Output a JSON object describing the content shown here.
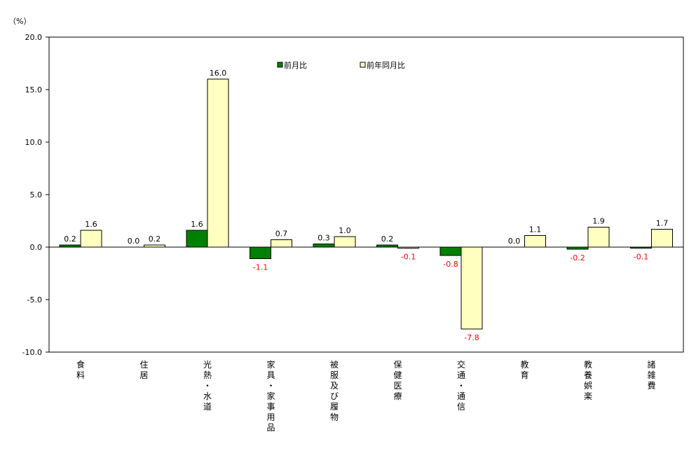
{
  "chart_data": {
    "type": "bar",
    "title": "",
    "ylabel": "（%）",
    "xlabel": "",
    "ylim": [
      -10,
      20
    ],
    "yticks": [
      "20.0",
      "15.0",
      "10.0",
      "5.0",
      "0.0",
      "-5.0",
      "-10.0"
    ],
    "ytick_values": [
      20,
      15,
      10,
      5,
      0,
      -5,
      -10
    ],
    "categories": [
      "食料",
      "住居",
      "光熱・水道",
      "家具・家事用品",
      "被服及び履物",
      "保健医療",
      "交通・通信",
      "教育",
      "教養娯楽",
      "諸雑費"
    ],
    "series": [
      {
        "name": "前月比",
        "color": "#008000",
        "values": [
          0.2,
          0.0,
          1.6,
          -1.1,
          0.3,
          0.2,
          -0.8,
          0.0,
          -0.2,
          -0.1
        ],
        "labels": [
          "0.2",
          "0.0",
          "1.6",
          "-1.1",
          "0.3",
          "0.2",
          "-0.8",
          "0.0",
          "-0.2",
          "-0.1"
        ]
      },
      {
        "name": "前年同月比",
        "color": "#FFFFC0",
        "values": [
          1.6,
          0.2,
          16.0,
          0.7,
          1.0,
          -0.1,
          -7.8,
          1.1,
          1.9,
          1.7
        ],
        "labels": [
          "1.6",
          "0.2",
          "16.0",
          "0.7",
          "1.0",
          "-0.1",
          "-7.8",
          "1.1",
          "1.9",
          "1.7"
        ]
      }
    ],
    "negative_label_color": "#FF0000",
    "positive_label_color": "#000000",
    "legend": "top-center"
  }
}
